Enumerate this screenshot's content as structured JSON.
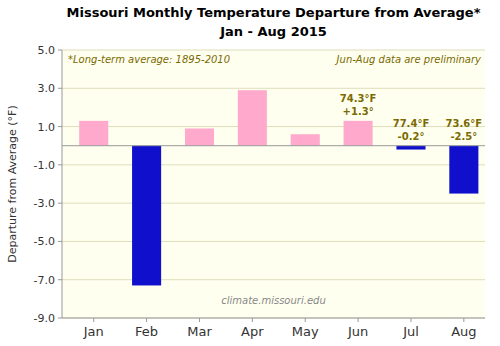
{
  "chart_data": {
    "type": "bar",
    "title": "Missouri Monthly Temperature Departure from Average*",
    "subtitle": "Jan - Aug 2015",
    "ylabel": "Departure from Average (°F)",
    "categories": [
      "Jan",
      "Feb",
      "Mar",
      "Apr",
      "May",
      "Jun",
      "Jul",
      "Aug"
    ],
    "values": [
      1.3,
      -7.3,
      0.9,
      2.9,
      0.6,
      1.3,
      -0.2,
      -2.5
    ],
    "colors": [
      "#ffaacc",
      "#1010cc",
      "#ffaacc",
      "#ffaacc",
      "#ffaacc",
      "#ffaacc",
      "#1010cc",
      "#1010cc"
    ],
    "ylim": [
      -9.0,
      5.0
    ],
    "yticks": [
      {
        "value": -9.0,
        "label": "-9.0"
      },
      {
        "value": -7.0,
        "label": "-7.0"
      },
      {
        "value": -5.0,
        "label": "-5.0"
      },
      {
        "value": -3.0,
        "label": "-3.0"
      },
      {
        "value": -1.0,
        "label": "-1.0"
      },
      {
        "value": 1.0,
        "label": "1.0"
      },
      {
        "value": 3.0,
        "label": "3.0"
      },
      {
        "value": 5.0,
        "label": "5.0"
      }
    ],
    "grid": true,
    "annotations": [
      {
        "text": "*Long-term average: 1895-2010",
        "color": "#7a6a00"
      },
      {
        "text": "Jun-Aug data are preliminary",
        "color": "#7a6a00"
      },
      {
        "text": "climate.missouri.edu",
        "color": "#888888"
      },
      {
        "category": "Jun",
        "lines": [
          "74.3°F",
          "+1.3°"
        ],
        "color": "#7a6a00"
      },
      {
        "category": "Jul",
        "lines": [
          "77.4°F",
          "-0.2°"
        ],
        "color": "#7a6a00"
      },
      {
        "category": "Aug",
        "lines": [
          "73.6°F",
          "-2.5°"
        ],
        "color": "#7a6a00"
      }
    ]
  }
}
